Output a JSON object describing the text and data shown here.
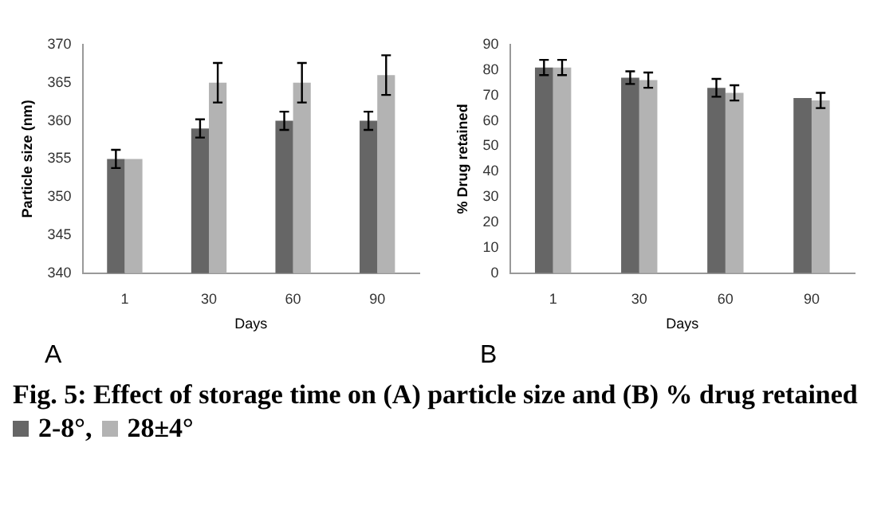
{
  "chart_data": [
    {
      "type": "bar",
      "title": "Fig. 5: Effect of storage time on (A) particle size and (B) % drug retained",
      "xlabel": "Days",
      "ylabel": "Particle size (nm)",
      "categories": [
        "1",
        "30",
        "60",
        "90"
      ],
      "legend": "bottom",
      "ylim": [
        340,
        370
      ],
      "yticks": [
        340,
        345,
        350,
        355,
        360,
        365,
        370
      ],
      "annotations": [
        "A"
      ],
      "series": [
        {
          "name": "2-8°,",
          "color": "#666666",
          "values": [
            355,
            359,
            360,
            360
          ],
          "errors": [
            1.2,
            1.2,
            1.2,
            1.2
          ]
        },
        {
          "name": "28±4°",
          "color": "#b3b3b3",
          "values": [
            355,
            365,
            365,
            366
          ],
          "errors": [
            null,
            2.6,
            2.6,
            2.6
          ]
        }
      ]
    },
    {
      "type": "bar",
      "xlabel": "Days",
      "ylabel": "% Drug retained",
      "categories": [
        "1",
        "30",
        "60",
        "90"
      ],
      "ylim": [
        0,
        90
      ],
      "yticks": [
        0,
        10,
        20,
        30,
        40,
        50,
        60,
        70,
        80,
        90
      ],
      "annotations": [
        "B"
      ],
      "series": [
        {
          "color": "#666666",
          "values": [
            81,
            77,
            73,
            69
          ],
          "errors": [
            3,
            2.5,
            3.5,
            null
          ]
        },
        {
          "color": "#b3b3b3",
          "values": [
            81,
            76,
            71,
            68
          ],
          "errors": [
            3,
            3,
            3,
            3
          ]
        }
      ]
    }
  ]
}
